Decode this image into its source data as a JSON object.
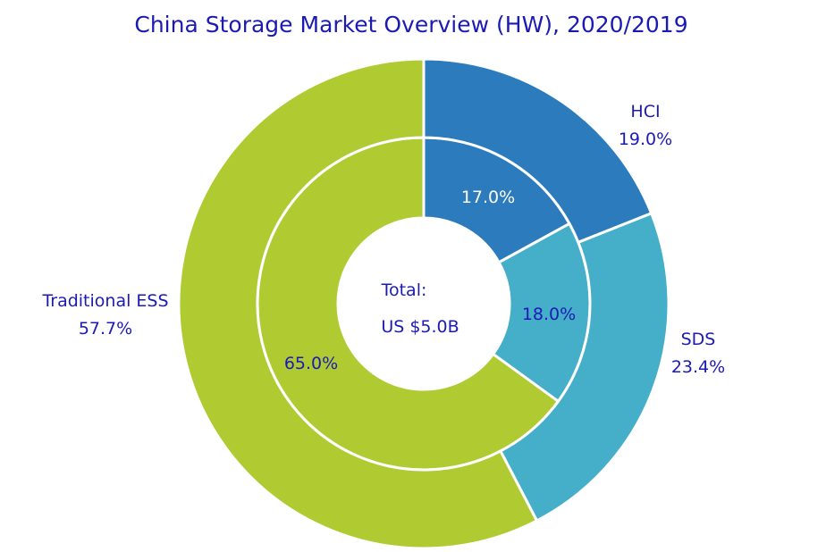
{
  "chart_data": {
    "type": "pie",
    "title": "China Storage Market Overview (HW), 2020/2019",
    "center_label": {
      "line1": "Total:",
      "line2": "US $5.0B"
    },
    "categories": [
      "HCI",
      "SDS",
      "Traditional ESS"
    ],
    "colors": {
      "HCI": "#2b7bbd",
      "SDS": "#45afc9",
      "Traditional ESS": "#b0cb32"
    },
    "series": [
      {
        "values": [
          17.0,
          18.0,
          65.0
        ],
        "labels": [
          "17.0%",
          "18.0%",
          "65.0%"
        ]
      },
      {
        "values": [
          19.0,
          23.4,
          57.7
        ],
        "labels": [
          "19.0%",
          "23.4%",
          "57.7%"
        ]
      }
    ]
  }
}
